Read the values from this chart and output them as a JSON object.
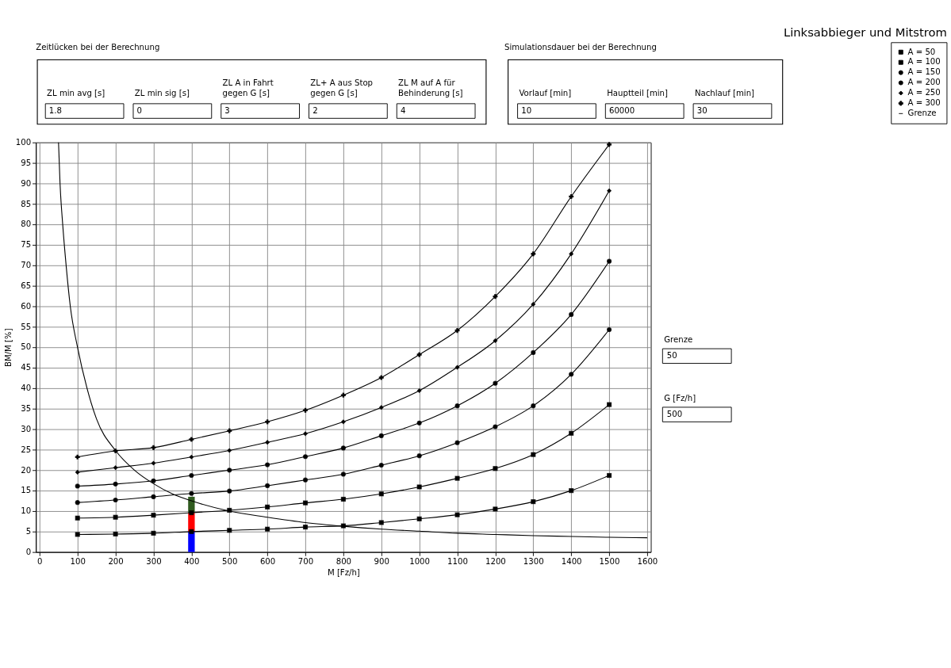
{
  "chart_data": {
    "type": "line",
    "title": "Linksabbieger und Mitstrom",
    "xlabel": "M [Fz/h]",
    "ylabel": "BM/M [%]",
    "x": [
      100,
      200,
      300,
      400,
      500,
      600,
      700,
      800,
      900,
      1000,
      1100,
      1200,
      1300,
      1400,
      1500
    ],
    "series": [
      {
        "name": "A =   50",
        "color": "#000000",
        "marker": "square",
        "values": [
          4.3,
          4.4,
          4.6,
          5.0,
          5.3,
          5.6,
          6.1,
          6.4,
          7.2,
          8.1,
          9.1,
          10.5,
          12.3,
          15.0,
          18.7
        ]
      },
      {
        "name": "A = 100",
        "color": "#000000",
        "marker": "square",
        "values": [
          8.3,
          8.5,
          9.0,
          9.6,
          10.2,
          11.0,
          12.0,
          12.9,
          14.2,
          15.9,
          18.0,
          20.4,
          23.8,
          29.0,
          36.0
        ]
      },
      {
        "name": "A = 150",
        "color": "#000000",
        "marker": "circle",
        "values": [
          12.1,
          12.7,
          13.5,
          14.3,
          14.9,
          16.2,
          17.6,
          19.0,
          21.2,
          23.5,
          26.7,
          30.6,
          35.7,
          43.4,
          54.3
        ]
      },
      {
        "name": "A = 200",
        "color": "#000000",
        "marker": "circle",
        "values": [
          16.1,
          16.6,
          17.4,
          18.7,
          20.0,
          21.3,
          23.3,
          25.4,
          28.4,
          31.5,
          35.7,
          41.2,
          48.7,
          58.0,
          71.0
        ]
      },
      {
        "name": "A = 250",
        "color": "#000000",
        "marker": "diamond",
        "values": [
          19.5,
          20.6,
          21.7,
          23.2,
          24.8,
          26.8,
          28.9,
          31.8,
          35.3,
          39.4,
          45.1,
          51.6,
          60.5,
          72.8,
          88.2
        ]
      },
      {
        "name": "A = 300",
        "color": "#000000",
        "marker": "cross",
        "values": [
          23.2,
          24.7,
          25.5,
          27.5,
          29.6,
          31.8,
          34.6,
          38.3,
          42.6,
          48.2,
          54.1,
          62.4,
          72.8,
          86.8,
          99.5
        ]
      },
      {
        "name": "Grenze",
        "color": "#000000",
        "marker": "none",
        "x": [
          50,
          54,
          61,
          70,
          81,
          100,
          125,
          150,
          200,
          250,
          300,
          350,
          400,
          500,
          600,
          700,
          800,
          900,
          1000,
          1100,
          1200,
          1300,
          1400,
          1500,
          1600
        ],
        "values": [
          100,
          90,
          80,
          70,
          60,
          50,
          40,
          32.5,
          24.8,
          20,
          16.7,
          14.2,
          12.5,
          10,
          8.5,
          7.2,
          6.3,
          5.6,
          5.1,
          4.6,
          4.3,
          4.0,
          3.8,
          3.6,
          3.5
        ]
      },
      {
        "type": "bar",
        "color": "#0000ff",
        "x": [
          400
        ],
        "values": [
          5
        ]
      },
      {
        "type": "bar",
        "color": "#ff0000",
        "x": [
          400
        ],
        "values": [
          4.6
        ]
      },
      {
        "type": "bar",
        "color": "#2f5a1e",
        "x": [
          400
        ],
        "values": [
          3.9
        ]
      }
    ],
    "stacked": true,
    "xlim": [
      0,
      1600
    ],
    "xticks": [
      0,
      100,
      200,
      300,
      400,
      500,
      600,
      700,
      800,
      900,
      1000,
      1100,
      1200,
      1300,
      1400,
      1500,
      1600
    ],
    "ylim": [
      0,
      100
    ],
    "yticks": [
      0,
      5,
      10,
      15,
      20,
      25,
      30,
      35,
      40,
      45,
      50,
      55,
      60,
      65,
      70,
      75,
      80,
      85,
      90,
      95,
      100
    ],
    "grid": true,
    "legend": "top right",
    "annotations": [
      "Zeitlücken bei der Berechnung",
      "ZL min avg [s]",
      "1.8",
      "ZL min sig [s]",
      "0",
      "ZL A in Fahrt\ngegen G [s]",
      "3",
      "ZL+ A aus Stop\ngegen G [s]",
      "2",
      "ZL M auf A für\nBehinderung [s]",
      "4",
      "Simulationsdauer bei der Berechnung",
      "Vorlauf [min]",
      "10",
      "Hauptteil [min]",
      "60000",
      "Nachlauf [min]",
      "30",
      "Grenze",
      "50",
      "G [Fz/h]",
      "500"
    ]
  }
}
